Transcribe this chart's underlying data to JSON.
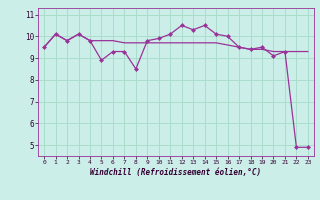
{
  "xlabel": "Windchill (Refroidissement éolien,°C)",
  "background_color": "#cceee8",
  "grid_color": "#aaddcc",
  "line_color": "#993399",
  "xlim": [
    -0.5,
    23.5
  ],
  "ylim": [
    4.5,
    11.3
  ],
  "yticks": [
    5,
    6,
    7,
    8,
    9,
    10,
    11
  ],
  "xticks": [
    0,
    1,
    2,
    3,
    4,
    5,
    6,
    7,
    8,
    9,
    10,
    11,
    12,
    13,
    14,
    15,
    16,
    17,
    18,
    19,
    20,
    21,
    22,
    23
  ],
  "hours": [
    0,
    1,
    2,
    3,
    4,
    5,
    6,
    7,
    8,
    9,
    10,
    11,
    12,
    13,
    14,
    15,
    16,
    17,
    18,
    19,
    20,
    21,
    22,
    23
  ],
  "windchill": [
    9.5,
    10.1,
    9.8,
    10.1,
    9.8,
    8.9,
    9.3,
    9.3,
    8.5,
    9.8,
    9.9,
    10.1,
    10.5,
    10.3,
    10.5,
    10.1,
    10.0,
    9.5,
    9.4,
    9.5,
    9.1,
    9.3,
    4.9,
    4.9
  ],
  "temperature": [
    9.5,
    10.1,
    9.8,
    10.1,
    9.8,
    9.8,
    9.8,
    9.7,
    9.7,
    9.7,
    9.7,
    9.7,
    9.7,
    9.7,
    9.7,
    9.7,
    9.6,
    9.5,
    9.4,
    9.4,
    9.3,
    9.3,
    9.3,
    9.3
  ]
}
